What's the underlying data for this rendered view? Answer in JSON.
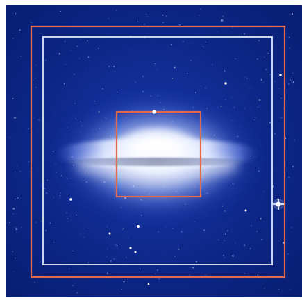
{
  "scene": {
    "subject": "",
    "background_color": "#0a1f78",
    "outer_box_color": "#e06a4f",
    "inner_box_color": "#d7ddf1",
    "core_box_color": "#e06a4f",
    "glow_color": "#ffffff",
    "star_color": "#f5f7ff"
  }
}
